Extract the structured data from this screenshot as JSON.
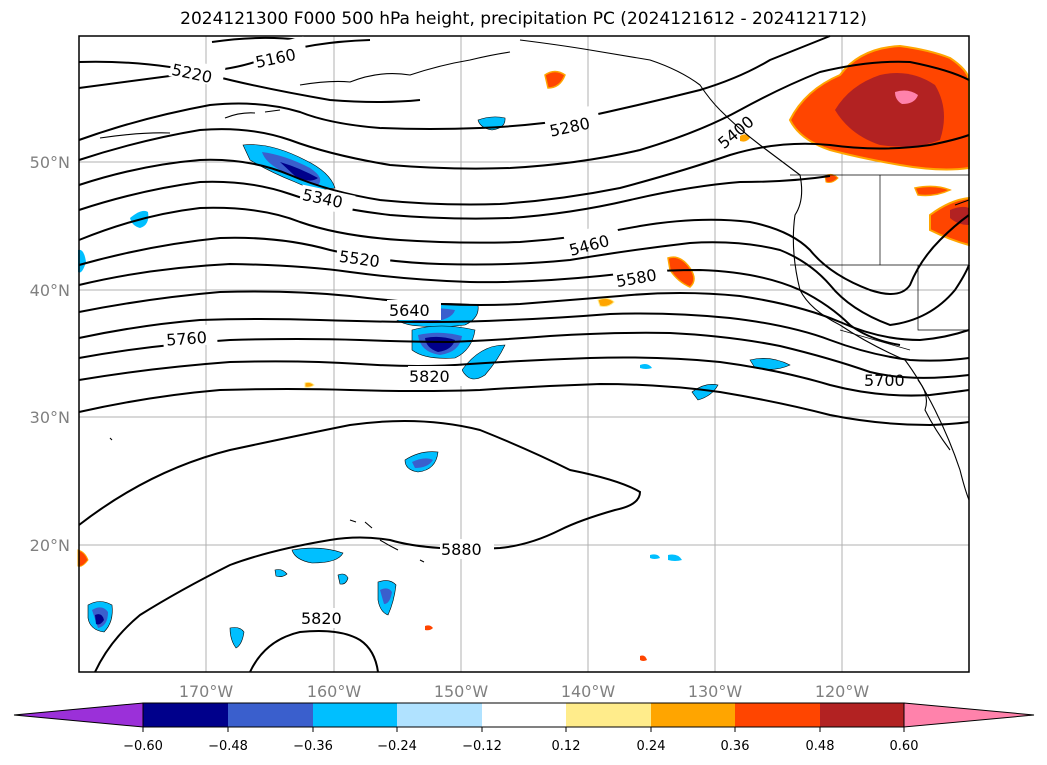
{
  "title": "2024121300 F000 500 hPa height, precipitation PC (2024121612 - 2024121712)",
  "map": {
    "lon_ticks": [
      "170°W",
      "160°W",
      "150°W",
      "140°W",
      "130°W",
      "120°W"
    ],
    "lat_ticks": [
      "50°N",
      "40°N",
      "30°N",
      "20°N"
    ],
    "contour_labels": [
      "5160",
      "5220",
      "5280",
      "5400",
      "5340",
      "5460",
      "5520",
      "5580",
      "5640",
      "5760",
      "5820",
      "5700",
      "5880",
      "5820"
    ]
  },
  "colorbar": {
    "ticks": [
      "−0.60",
      "−0.48",
      "−0.36",
      "−0.24",
      "−0.12",
      "0.12",
      "0.24",
      "0.36",
      "0.48",
      "0.60"
    ],
    "colors": [
      "#9b30d9",
      "#00008b",
      "#3a5fcd",
      "#00bfff",
      "#b0e2ff",
      "#ffffff",
      "#ffec8b",
      "#ffa500",
      "#ff4500",
      "#b22222",
      "#ff82ab"
    ]
  }
}
